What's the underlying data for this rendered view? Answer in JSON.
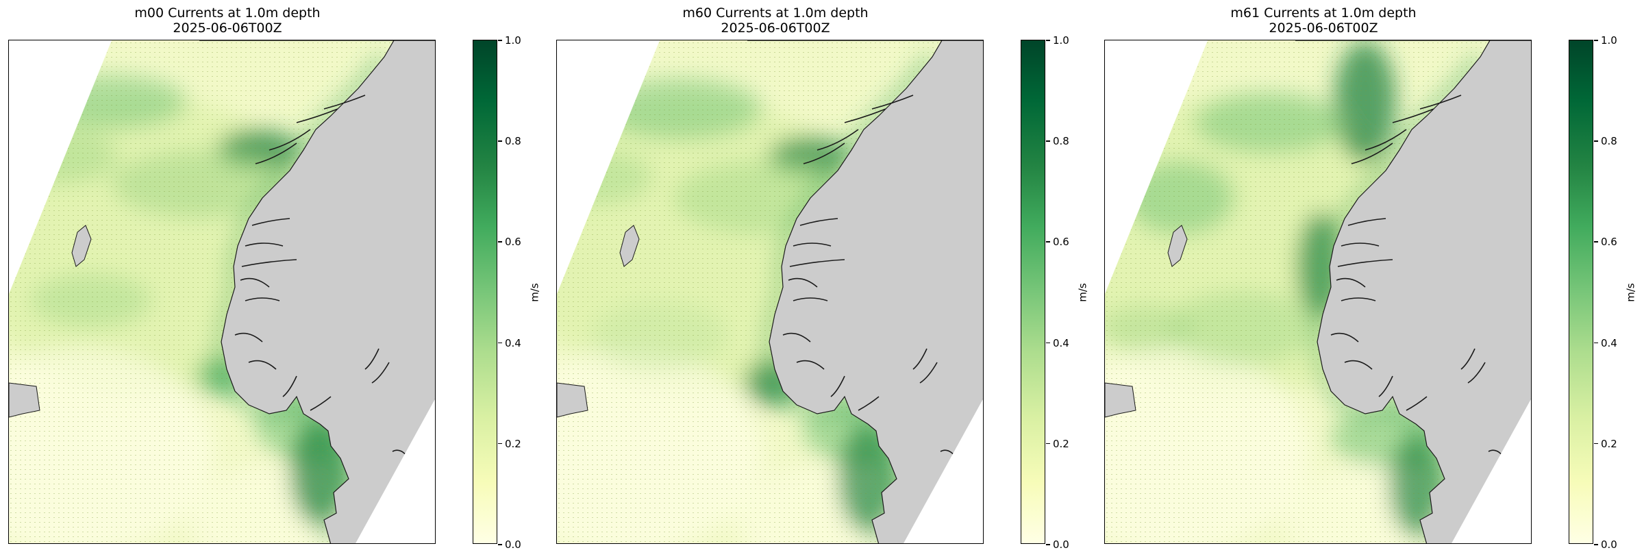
{
  "panels": [
    {
      "title": "m00 Currents at 1.0m depth",
      "date": "2025-06-06T00Z"
    },
    {
      "title": "m60 Currents at 1.0m depth",
      "date": "2025-06-06T00Z"
    },
    {
      "title": "m61 Currents at 1.0m depth",
      "date": "2025-06-06T00Z"
    }
  ],
  "colorbar": {
    "label": "m/s",
    "ticks": [
      "0.0",
      "0.2",
      "0.4",
      "0.6",
      "0.8",
      "1.0"
    ],
    "range": [
      0.0,
      1.0
    ],
    "colormap": [
      "#ffffe5",
      "#f7fcb9",
      "#d9f0a3",
      "#addd8e",
      "#78c679",
      "#41ab5d",
      "#238443",
      "#006837",
      "#004529"
    ]
  },
  "colors": {
    "land": "#cccccc",
    "coast": "#1a1a1a",
    "domain_outside": "#ffffff"
  }
}
